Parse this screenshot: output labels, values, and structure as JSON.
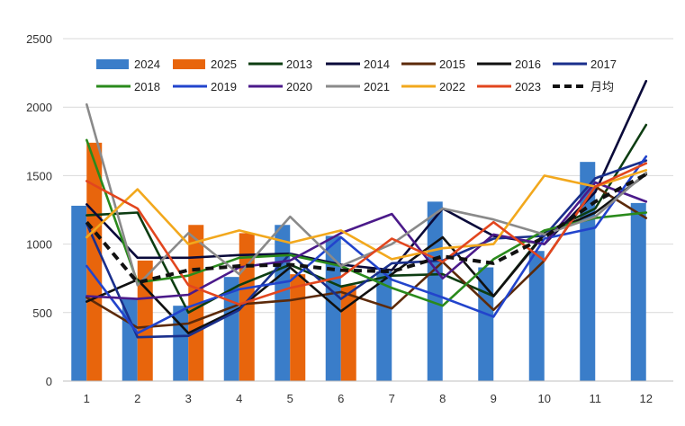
{
  "chart_data": {
    "type": "bar",
    "title": "",
    "xlabel": "",
    "ylabel": "",
    "ylim": [
      0,
      2500
    ],
    "yticks": [
      0,
      500,
      1000,
      1500,
      2000,
      2500
    ],
    "grid": true,
    "legend_position": "top",
    "categories": [
      "1",
      "2",
      "3",
      "4",
      "5",
      "6",
      "7",
      "8",
      "9",
      "10",
      "11",
      "12"
    ],
    "bar_series": [
      {
        "name": "2024",
        "color": "#3a7dc9",
        "values": [
          1280,
          600,
          550,
          760,
          1140,
          1060,
          800,
          1310,
          830,
          950,
          1600,
          1300
        ]
      },
      {
        "name": "2025",
        "color": "#e8650c",
        "values": [
          1740,
          880,
          1140,
          1080,
          780,
          700,
          null,
          null,
          null,
          null,
          null,
          null
        ]
      }
    ],
    "line_series": [
      {
        "name": "2013",
        "color": "#0d3d12",
        "dashed": false,
        "values": [
          1210,
          1230,
          500,
          700,
          850,
          690,
          770,
          780,
          620,
          1080,
          1260,
          1870
        ]
      },
      {
        "name": "2014",
        "color": "#0a0a3a",
        "dashed": false,
        "values": [
          1290,
          900,
          900,
          920,
          930,
          850,
          810,
          1260,
          1060,
          1000,
          1380,
          2190
        ]
      },
      {
        "name": "2015",
        "color": "#5c2a0a",
        "dashed": false,
        "values": [
          610,
          390,
          420,
          560,
          590,
          650,
          530,
          870,
          520,
          880,
          1420,
          1190
        ]
      },
      {
        "name": "2016",
        "color": "#111111",
        "dashed": false,
        "values": [
          580,
          740,
          350,
          530,
          830,
          510,
          780,
          1050,
          620,
          1070,
          1230,
          1510
        ]
      },
      {
        "name": "2017",
        "color": "#1a2f8c",
        "dashed": false,
        "values": [
          1150,
          320,
          330,
          520,
          930,
          600,
          860,
          880,
          1040,
          1060,
          1480,
          1610
        ]
      },
      {
        "name": "2018",
        "color": "#2a8a1c",
        "dashed": false,
        "values": [
          1760,
          720,
          770,
          900,
          920,
          840,
          680,
          550,
          890,
          1100,
          1190,
          1230
        ]
      },
      {
        "name": "2019",
        "color": "#2244cc",
        "dashed": false,
        "values": [
          840,
          350,
          540,
          670,
          730,
          1050,
          740,
          610,
          470,
          1040,
          1120,
          1640
        ]
      },
      {
        "name": "2020",
        "color": "#4b1a8a",
        "dashed": false,
        "values": [
          620,
          600,
          630,
          830,
          880,
          1080,
          1220,
          750,
          1070,
          1000,
          1450,
          1310
        ]
      },
      {
        "name": "2021",
        "color": "#8a8a8a",
        "dashed": false,
        "values": [
          2020,
          700,
          1080,
          780,
          1200,
          840,
          1000,
          1260,
          1180,
          1070,
          1200,
          1520
        ]
      },
      {
        "name": "2022",
        "color": "#f2a81d",
        "dashed": false,
        "values": [
          1050,
          1400,
          1000,
          1100,
          1010,
          1100,
          890,
          970,
          1000,
          1500,
          1420,
          1540
        ]
      },
      {
        "name": "2023",
        "color": "#e2461e",
        "dashed": false,
        "values": [
          1460,
          1260,
          700,
          560,
          680,
          760,
          1040,
          870,
          1160,
          880,
          1420,
          1590
        ]
      },
      {
        "name": "月均",
        "color": "#111111",
        "dashed": true,
        "values": [
          1160,
          720,
          810,
          840,
          850,
          810,
          800,
          910,
          860,
          1050,
          1310,
          1510
        ]
      }
    ]
  }
}
